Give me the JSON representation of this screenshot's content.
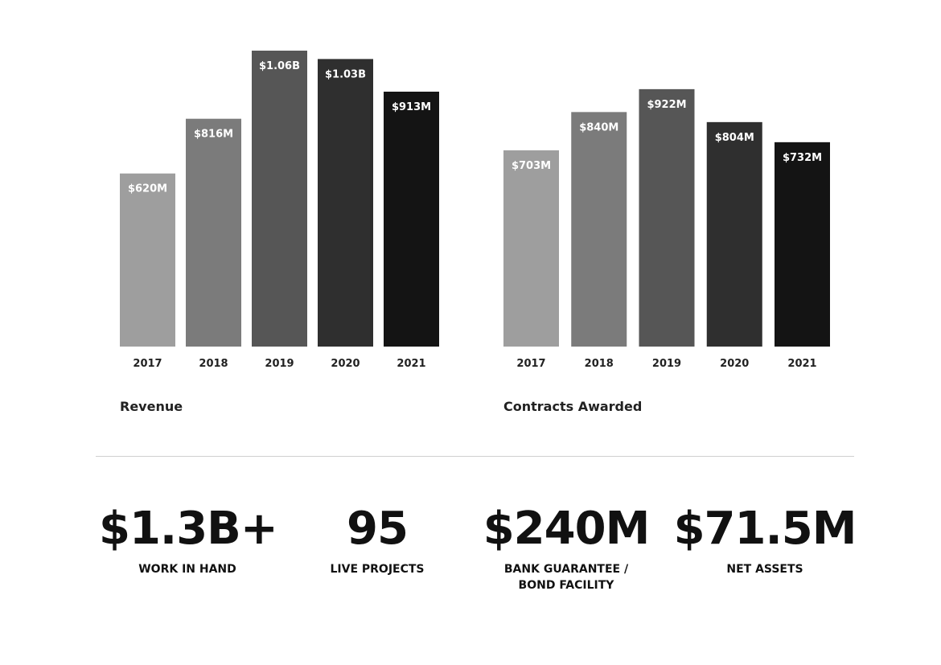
{
  "chart_data": [
    {
      "type": "bar",
      "title": "Revenue",
      "categories": [
        "2017",
        "2018",
        "2019",
        "2020",
        "2021"
      ],
      "values": [
        620,
        816,
        1060,
        1030,
        913
      ],
      "data_labels": [
        "$620M",
        "$816M",
        "$1.06B",
        "$1.03B",
        "$913M"
      ],
      "bar_colors": [
        "#9e9e9e",
        "#7b7b7b",
        "#565656",
        "#2f2f2f",
        "#141414"
      ],
      "grid": false,
      "unit": "$M"
    },
    {
      "type": "bar",
      "title": "Contracts Awarded",
      "categories": [
        "2017",
        "2018",
        "2019",
        "2020",
        "2021"
      ],
      "values": [
        703,
        840,
        922,
        804,
        732
      ],
      "data_labels": [
        "$703M",
        "$840M",
        "$922M",
        "$804M",
        "$732M"
      ],
      "bar_colors": [
        "#9e9e9e",
        "#7b7b7b",
        "#565656",
        "#2f2f2f",
        "#141414"
      ],
      "grid": false,
      "unit": "$M"
    }
  ],
  "stats": [
    {
      "value": "$1.3B+",
      "label": "WORK IN HAND"
    },
    {
      "value": "95",
      "label": "LIVE PROJECTS"
    },
    {
      "value": "$240M",
      "label": "BANK GUARANTEE /\nBOND FACILITY"
    },
    {
      "value": "$71.5M",
      "label": "NET ASSETS"
    }
  ]
}
